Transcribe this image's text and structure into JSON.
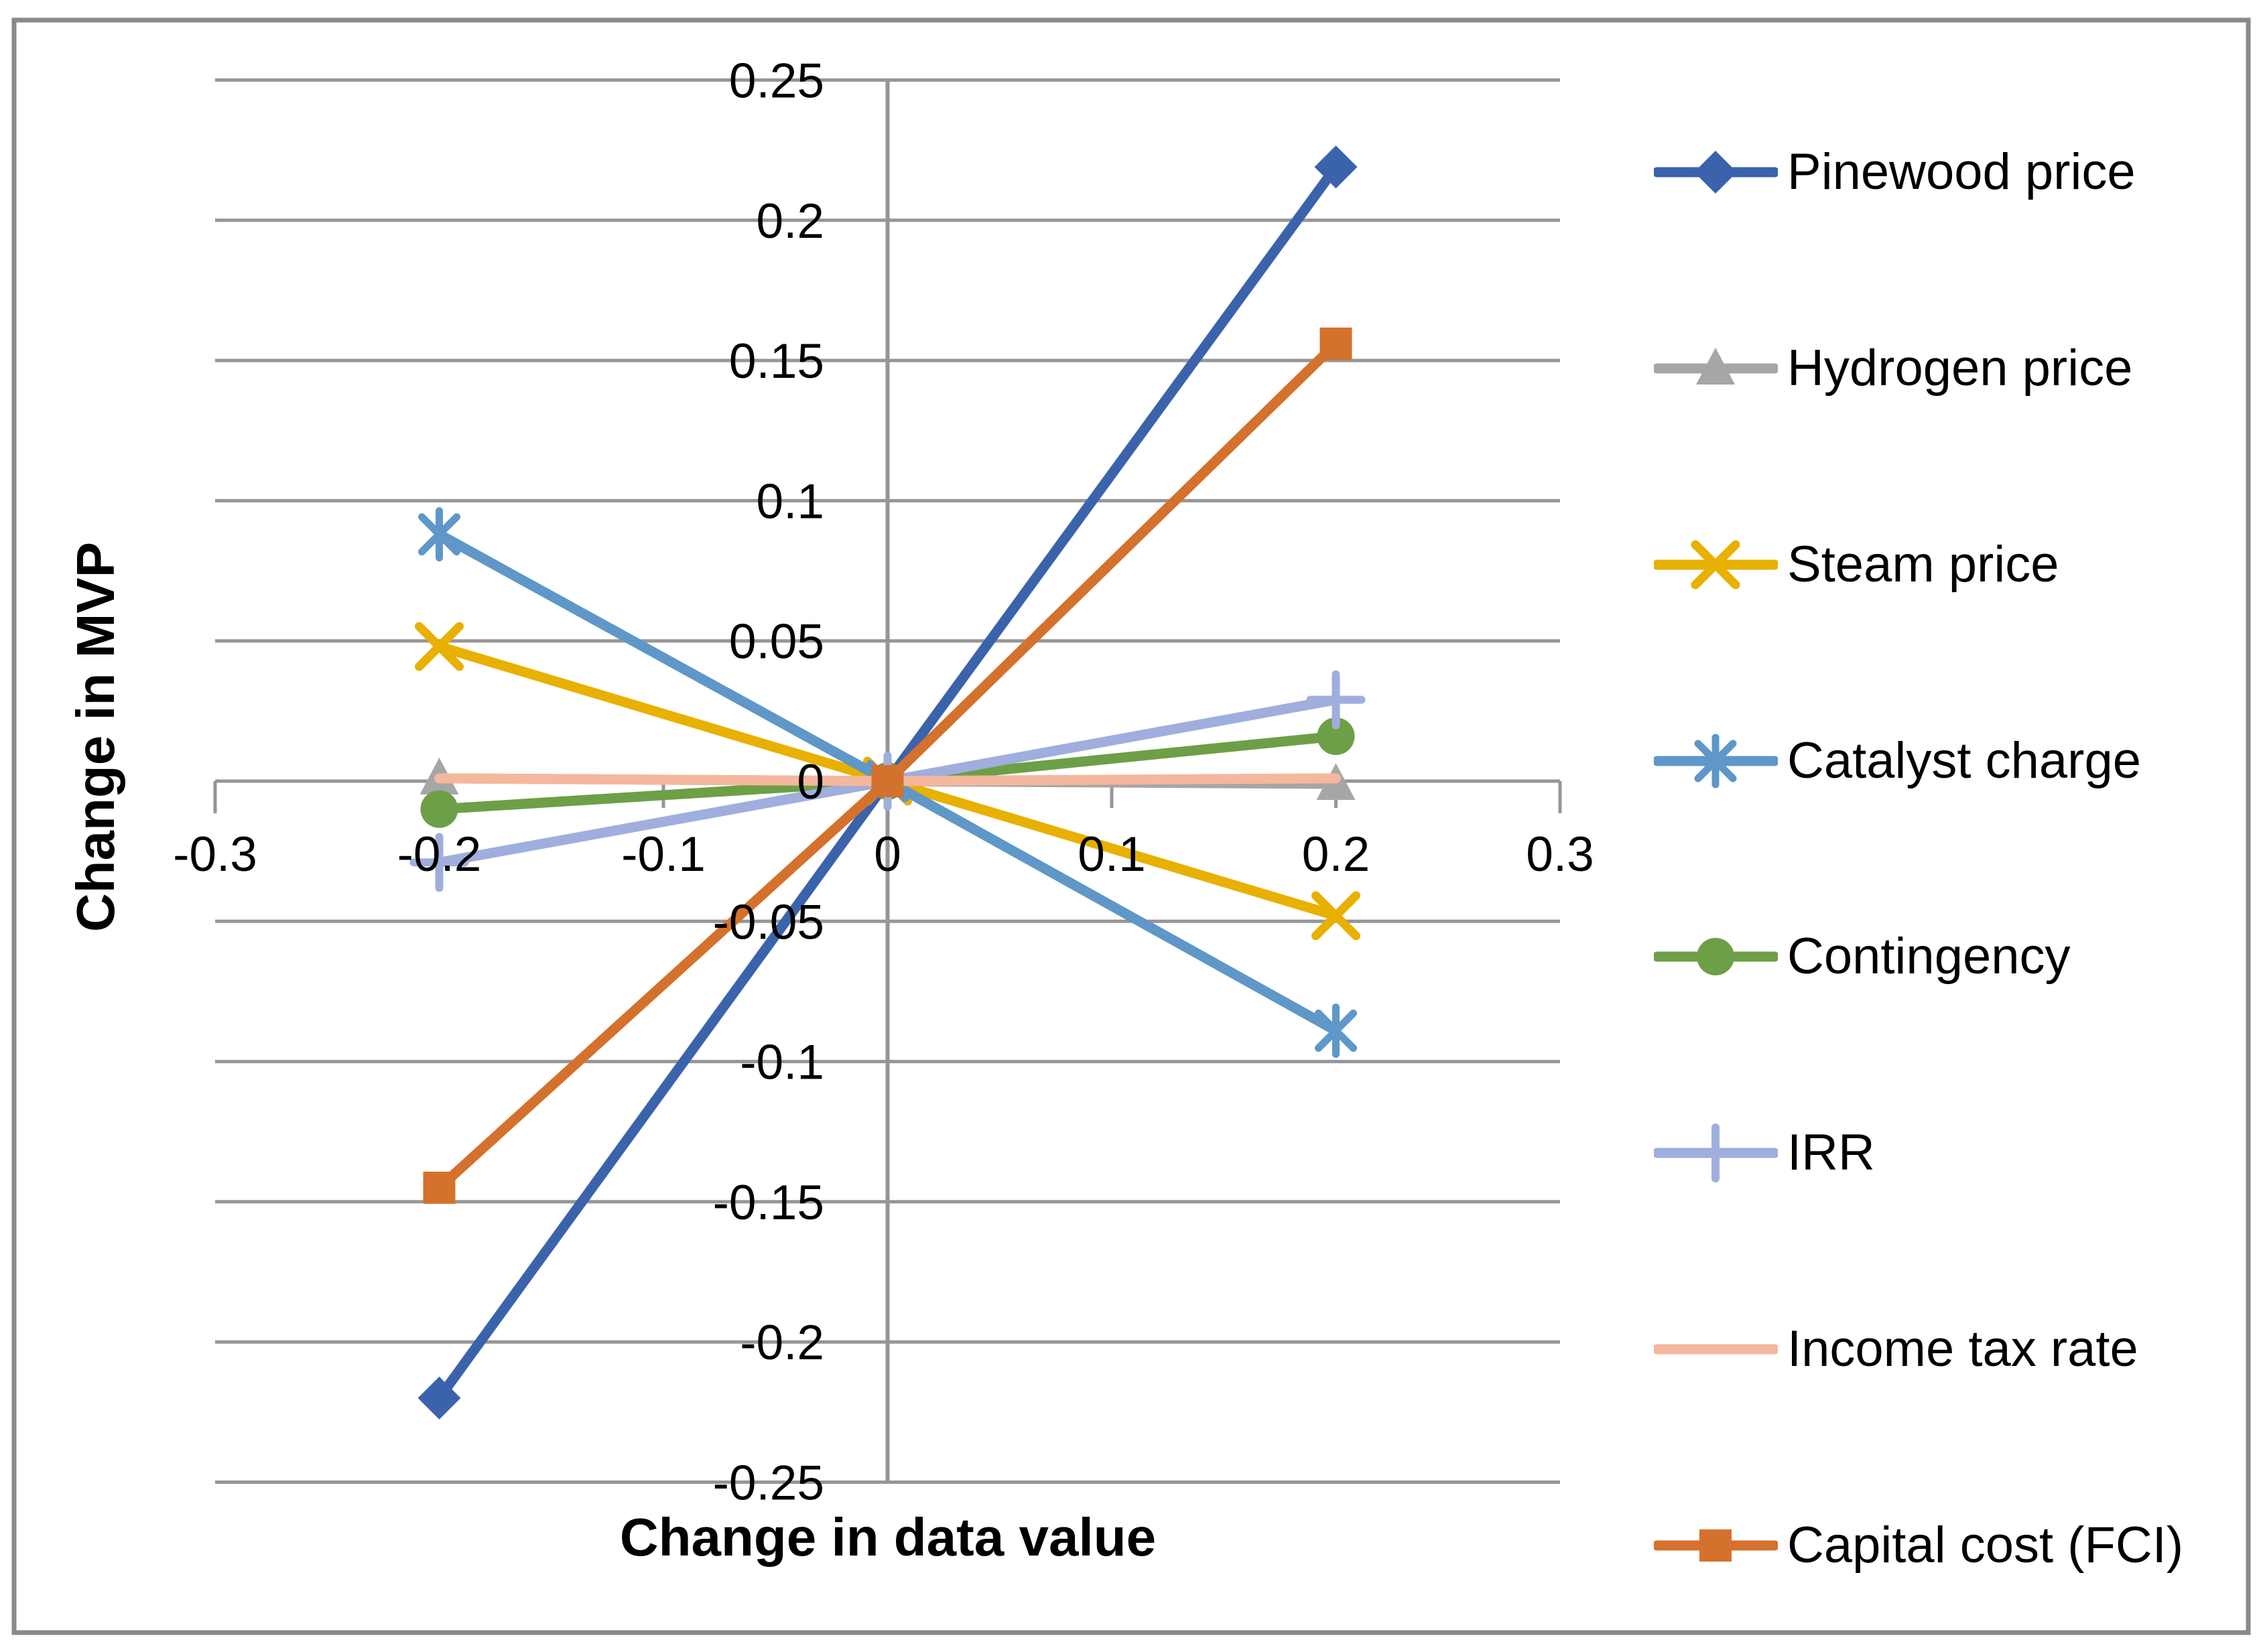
{
  "chart_data": {
    "type": "line",
    "title": "",
    "xlabel": "Change in data value",
    "ylabel": "Change in MVP",
    "x": [
      -0.2,
      0,
      0.2
    ],
    "series": [
      {
        "name": "Pinewood price",
        "marker": "diamond",
        "color": "#3B63AC",
        "values": [
          -0.22,
          0,
          0.219
        ]
      },
      {
        "name": "Hydrogen price",
        "marker": "triangle",
        "color": "#A6A6A6",
        "values": [
          0.001,
          0,
          -0.001
        ]
      },
      {
        "name": "Steam price",
        "marker": "x",
        "color": "#E8B000",
        "values": [
          0.048,
          0,
          -0.048
        ]
      },
      {
        "name": "Catalyst charge",
        "marker": "asterisk",
        "color": "#5F97C9",
        "values": [
          0.088,
          0,
          -0.089
        ]
      },
      {
        "name": "Contingency",
        "marker": "circle",
        "color": "#6D9F47",
        "values": [
          -0.01,
          0,
          0.016
        ]
      },
      {
        "name": "IRR",
        "marker": "plus",
        "color": "#9FAEDC",
        "values": [
          -0.029,
          0,
          0.029
        ]
      },
      {
        "name": "Income tax rate",
        "marker": "none",
        "color": "#F5B79D",
        "values": [
          0.001,
          0,
          0.001
        ]
      },
      {
        "name": "Capital cost (FCI)",
        "marker": "square",
        "color": "#D4712C",
        "values": [
          -0.145,
          0,
          0.156
        ]
      }
    ],
    "x_ticks": [
      {
        "label": "-0.3",
        "value": -0.3
      },
      {
        "label": "-0.2",
        "value": -0.2
      },
      {
        "label": "-0.1",
        "value": -0.1
      },
      {
        "label": "0",
        "value": 0
      },
      {
        "label": "0.1",
        "value": 0.1
      },
      {
        "label": "0.2",
        "value": 0.2
      },
      {
        "label": "0.3",
        "value": 0.3
      }
    ],
    "y_ticks": [
      {
        "label": "0.25",
        "value": 0.25
      },
      {
        "label": "0.2",
        "value": 0.2
      },
      {
        "label": "0.15",
        "value": 0.15
      },
      {
        "label": "0.1",
        "value": 0.1
      },
      {
        "label": "0.05",
        "value": 0.05
      },
      {
        "label": "0",
        "value": 0
      },
      {
        "label": "-0.05",
        "value": -0.05
      },
      {
        "label": "-0.1",
        "value": -0.1
      },
      {
        "label": "-0.15",
        "value": -0.15
      },
      {
        "label": "-0.2",
        "value": -0.2
      },
      {
        "label": "-0.25",
        "value": -0.25
      }
    ],
    "xlim": [
      -0.3,
      0.3
    ],
    "ylim": [
      -0.25,
      0.25
    ],
    "grid": "horizontal",
    "legend_position": "right",
    "colors": {
      "gridline": "#969696",
      "axis": "#969696",
      "frame_border": "#898989",
      "text": "#000000",
      "background": "#ffffff"
    }
  }
}
